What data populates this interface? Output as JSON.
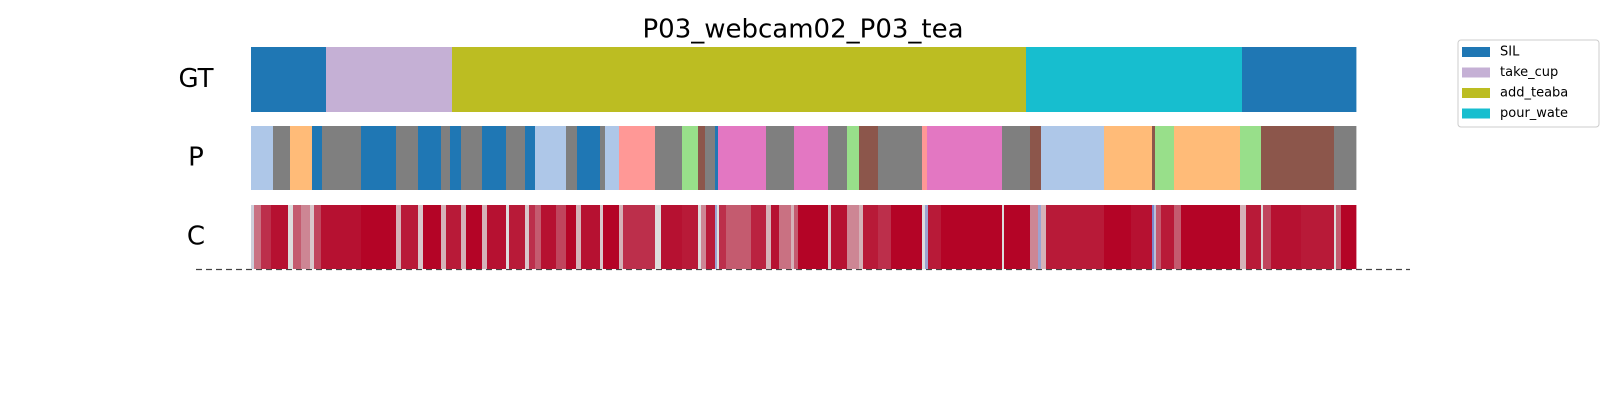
{
  "chart_data": {
    "type": "segmentation",
    "title": "P03_webcam02_P03_tea",
    "rows": [
      "GT",
      "P",
      "C"
    ],
    "xlim": [
      0,
      1105
    ],
    "legend": {
      "position": "upper right",
      "names": [
        "SIL",
        "take_cup",
        "add_teaba",
        "pour_wate"
      ],
      "colors": [
        "#1f77b4",
        "#c5b0d5",
        "#bcbd22",
        "#17becf"
      ]
    },
    "gt": {
      "bounds": [
        0,
        75,
        201,
        775,
        991,
        1105
      ],
      "classes": [
        0,
        1,
        2,
        3,
        0
      ]
    },
    "pred": {
      "bounds": [
        0,
        22,
        39,
        61,
        71,
        110,
        145,
        167,
        190,
        199,
        210,
        231,
        255,
        274,
        284,
        315,
        326,
        349,
        354,
        368,
        404,
        431,
        447,
        454,
        464,
        467,
        515,
        543,
        577,
        596,
        608,
        627,
        671,
        676,
        751,
        779,
        790,
        853,
        901,
        904,
        923,
        989,
        1010,
        1083,
        1105
      ],
      "colors": [
        "#aec7e8",
        "#7f7f7f",
        "#ffbb78",
        "#1f77b4",
        "#7f7f7f",
        "#1f77b4",
        "#7f7f7f",
        "#1f77b4",
        "#7f7f7f",
        "#1f77b4",
        "#7f7f7f",
        "#1f77b4",
        "#7f7f7f",
        "#1f77b4",
        "#aec7e8",
        "#7f7f7f",
        "#1f77b4",
        "#7f7f7f",
        "#aec7e8",
        "#ff9896",
        "#7f7f7f",
        "#98df8a",
        "#8c564b",
        "#7f7f7f",
        "#1f77b4",
        "#e377c2",
        "#7f7f7f",
        "#e377c2",
        "#7f7f7f",
        "#98df8a",
        "#8c564b",
        "#7f7f7f",
        "#ff9896",
        "#e377c2",
        "#7f7f7f",
        "#8c564b",
        "#aec7e8",
        "#ffbb78",
        "#8c564b",
        "#98df8a",
        "#ffbb78",
        "#98df8a",
        "#8c564b",
        "#7f7f7f"
      ]
    },
    "confidence": {
      "clim": [
        0,
        1
      ],
      "colormap": [
        "#3b4cc0",
        "#dddddd",
        "#b40426"
      ],
      "bounds": [
        0,
        3,
        10,
        20,
        37,
        42,
        50,
        59,
        63,
        70,
        110,
        145,
        150,
        167,
        172,
        190,
        195,
        210,
        215,
        231,
        236,
        255,
        258,
        274,
        278,
        284,
        290,
        305,
        315,
        325,
        330,
        349,
        352,
        368,
        372,
        404,
        410,
        431,
        447,
        450,
        455,
        464,
        466,
        468,
        475,
        500,
        515,
        520,
        528,
        540,
        543,
        547,
        577,
        580,
        596,
        608,
        612,
        627,
        640,
        671,
        674,
        677,
        690,
        751,
        753,
        779,
        787,
        790,
        795,
        853,
        880,
        901,
        903,
        905,
        910,
        923,
        930,
        989,
        995,
        1010,
        1012,
        1020,
        1050,
        1083,
        1085,
        1090,
        1105
      ],
      "values": [
        0.45,
        0.75,
        0.9,
        0.97,
        0.5,
        0.8,
        0.7,
        0.55,
        0.85,
        0.97,
        1,
        0.6,
        0.95,
        0.55,
        1,
        0.6,
        0.95,
        0.6,
        1,
        0.6,
        0.97,
        0.5,
        0.95,
        0.55,
        0.9,
        0.8,
        0.97,
        0.85,
        1,
        0.6,
        0.97,
        0.55,
        1,
        0.6,
        0.9,
        0.5,
        0.97,
        0.95,
        0.5,
        0.7,
        0.95,
        0.3,
        0.5,
        0.9,
        0.8,
        0.93,
        0.6,
        0.97,
        0.75,
        0.6,
        0.8,
        1,
        0.55,
        0.97,
        0.7,
        0.6,
        0.95,
        0.9,
        1,
        0.5,
        0.3,
        0.95,
        1,
        0.5,
        1,
        0.7,
        0.3,
        0.6,
        0.95,
        1,
        0.97,
        0.2,
        0.4,
        0.8,
        0.95,
        0.8,
        1,
        0.6,
        0.95,
        0.5,
        0.85,
        0.97,
        0.95,
        0.5,
        0.8,
        1
      ]
    }
  }
}
